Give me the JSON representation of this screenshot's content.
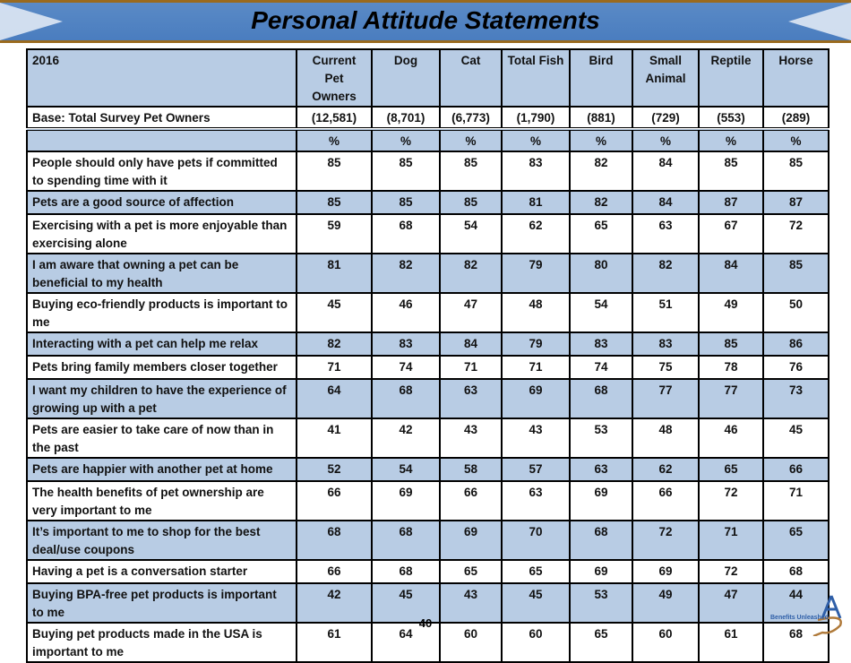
{
  "title": "Personal Attitude Statements",
  "table": {
    "corner": "2016",
    "columns": [
      "Current Pet Owners",
      "Dog",
      "Cat",
      "Total Fish",
      "Bird",
      "Small Animal",
      "Reptile",
      "Horse"
    ],
    "base_label": "Base: Total Survey Pet Owners",
    "bases": [
      "(12,581)",
      "(8,701)",
      "(6,773)",
      "(1,790)",
      "(881)",
      "(729)",
      "(553)",
      "(289)"
    ],
    "unit": "%",
    "rows": [
      {
        "label": "People should only have pets if committed to spending time with it",
        "values": [
          "85",
          "85",
          "85",
          "83",
          "82",
          "84",
          "85",
          "85"
        ]
      },
      {
        "label": "Pets are a good source of affection",
        "values": [
          "85",
          "85",
          "85",
          "81",
          "82",
          "84",
          "87",
          "87"
        ]
      },
      {
        "label": "Exercising with a pet is more enjoyable than exercising alone",
        "values": [
          "59",
          "68",
          "54",
          "62",
          "65",
          "63",
          "67",
          "72"
        ]
      },
      {
        "label": "I am aware that owning a pet can be beneficial to my health",
        "values": [
          "81",
          "82",
          "82",
          "79",
          "80",
          "82",
          "84",
          "85"
        ]
      },
      {
        "label": "Buying eco-friendly products is important to me",
        "values": [
          "45",
          "46",
          "47",
          "48",
          "54",
          "51",
          "49",
          "50"
        ]
      },
      {
        "label": "Interacting with a pet can help me relax",
        "values": [
          "82",
          "83",
          "84",
          "79",
          "83",
          "83",
          "85",
          "86"
        ]
      },
      {
        "label": "Pets bring family members closer together",
        "values": [
          "71",
          "74",
          "71",
          "71",
          "74",
          "75",
          "78",
          "76"
        ]
      },
      {
        "label": "I want my children to have the experience of growing up with a pet",
        "values": [
          "64",
          "68",
          "63",
          "69",
          "68",
          "77",
          "77",
          "73"
        ]
      },
      {
        "label": "Pets are easier to take care of now than in the past",
        "values": [
          "41",
          "42",
          "43",
          "43",
          "53",
          "48",
          "46",
          "45"
        ]
      },
      {
        "label": "Pets are happier with another pet at home",
        "values": [
          "52",
          "54",
          "58",
          "57",
          "63",
          "62",
          "65",
          "66"
        ]
      },
      {
        "label": "The health benefits of pet ownership are very important to me",
        "values": [
          "66",
          "69",
          "66",
          "63",
          "69",
          "66",
          "72",
          "71"
        ]
      },
      {
        "label": "It’s important to me to shop for the best deal/use coupons",
        "values": [
          "68",
          "68",
          "69",
          "70",
          "68",
          "72",
          "71",
          "65"
        ]
      },
      {
        "label": "Having a pet is a conversation starter",
        "values": [
          "66",
          "68",
          "65",
          "65",
          "69",
          "69",
          "72",
          "68"
        ]
      },
      {
        "label": "Buying BPA-free pet products is important to me",
        "values": [
          "42",
          "45",
          "43",
          "45",
          "53",
          "49",
          "47",
          "44"
        ]
      },
      {
        "label": "Buying pet products made in the USA is important to me",
        "values": [
          "61",
          "64",
          "60",
          "60",
          "65",
          "60",
          "61",
          "68"
        ]
      }
    ]
  },
  "page_number": "40",
  "logo_text": "Benefits Unleashed"
}
